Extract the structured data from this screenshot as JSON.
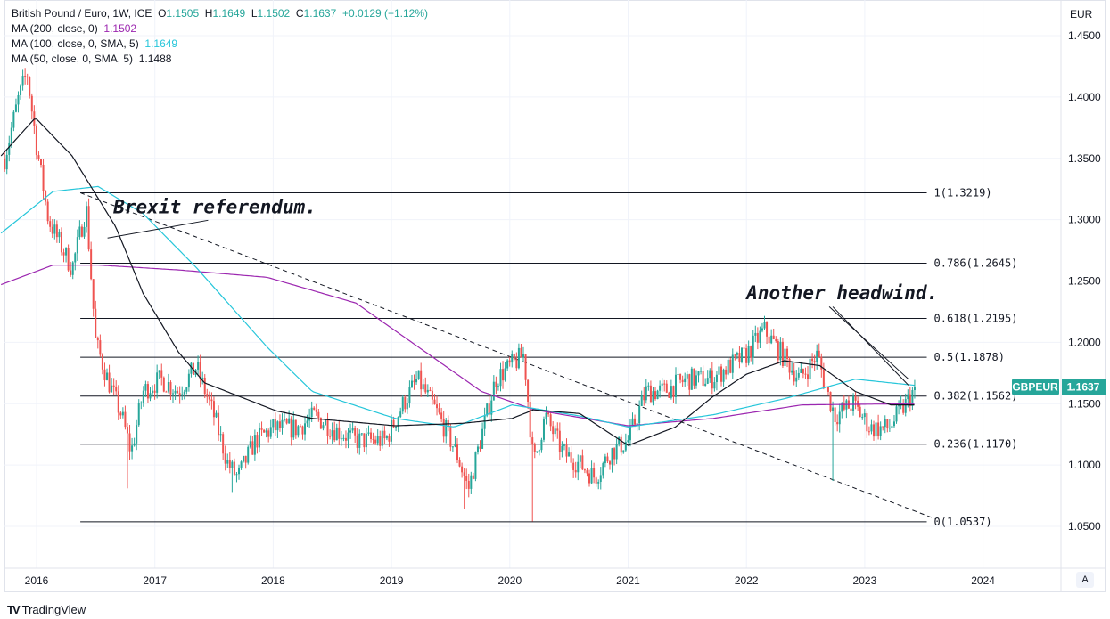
{
  "header": {
    "symbol": "British Pound / Euro, 1W, ICE",
    "open_label": "O",
    "open": "1.1505",
    "high_label": "H",
    "high": "1.1649",
    "low_label": "L",
    "low": "1.1502",
    "close_label": "C",
    "close": "1.1637",
    "change": "+0.0129 (+1.12%)"
  },
  "indicators": [
    {
      "label": "MA (200, close, 0)",
      "value": "1.1502",
      "color": "#9c27b0"
    },
    {
      "label": "MA (100, close, 0, SMA, 5)",
      "value": "1.1649",
      "color": "#26c6da"
    },
    {
      "label": "MA (50, close, 0, SMA, 5)",
      "value": "1.1488",
      "color": "#131722"
    }
  ],
  "price_tag": {
    "symbol": "GBPEUR",
    "value": "1.1637",
    "color": "#26a69a"
  },
  "footer": {
    "brand": "TradingView",
    "auto_button": "A"
  },
  "chart_data": {
    "type": "candlestick",
    "currency_label": "EUR",
    "ylim": [
      1.02,
      1.47
    ],
    "xlim": [
      2015.7,
      2024.65
    ],
    "y_ticks": [
      "1.0500",
      "1.1000",
      "1.1500",
      "1.2000",
      "1.2500",
      "1.3000",
      "1.3500",
      "1.4000",
      "1.4500"
    ],
    "x_ticks": [
      "2016",
      "2017",
      "2018",
      "2019",
      "2020",
      "2021",
      "2022",
      "2023",
      "2024"
    ],
    "up_color": "#26a69a",
    "down_color": "#ef5350",
    "close_path": [
      [
        2015.73,
        1.35
      ],
      [
        2015.85,
        1.4
      ],
      [
        2015.92,
        1.42
      ],
      [
        2016.0,
        1.36
      ],
      [
        2016.1,
        1.3
      ],
      [
        2016.2,
        1.28
      ],
      [
        2016.3,
        1.26
      ],
      [
        2016.42,
        1.31
      ],
      [
        2016.5,
        1.2
      ],
      [
        2016.6,
        1.17
      ],
      [
        2016.72,
        1.14
      ],
      [
        2016.8,
        1.11
      ],
      [
        2016.9,
        1.16
      ],
      [
        2017.05,
        1.17
      ],
      [
        2017.2,
        1.16
      ],
      [
        2017.35,
        1.18
      ],
      [
        2017.5,
        1.14
      ],
      [
        2017.62,
        1.1
      ],
      [
        2017.7,
        1.09
      ],
      [
        2017.85,
        1.12
      ],
      [
        2018.0,
        1.13
      ],
      [
        2018.2,
        1.13
      ],
      [
        2018.35,
        1.14
      ],
      [
        2018.5,
        1.13
      ],
      [
        2018.7,
        1.12
      ],
      [
        2018.95,
        1.12
      ],
      [
        2019.1,
        1.15
      ],
      [
        2019.22,
        1.17
      ],
      [
        2019.4,
        1.14
      ],
      [
        2019.55,
        1.11
      ],
      [
        2019.65,
        1.08
      ],
      [
        2019.75,
        1.12
      ],
      [
        2019.88,
        1.17
      ],
      [
        2020.0,
        1.18
      ],
      [
        2020.12,
        1.19
      ],
      [
        2020.2,
        1.1
      ],
      [
        2020.3,
        1.14
      ],
      [
        2020.45,
        1.11
      ],
      [
        2020.6,
        1.1
      ],
      [
        2020.72,
        1.09
      ],
      [
        2020.85,
        1.11
      ],
      [
        2021.0,
        1.12
      ],
      [
        2021.15,
        1.16
      ],
      [
        2021.3,
        1.16
      ],
      [
        2021.5,
        1.17
      ],
      [
        2021.7,
        1.17
      ],
      [
        2021.85,
        1.18
      ],
      [
        2022.0,
        1.19
      ],
      [
        2022.15,
        1.21
      ],
      [
        2022.3,
        1.19
      ],
      [
        2022.45,
        1.17
      ],
      [
        2022.6,
        1.19
      ],
      [
        2022.68,
        1.16
      ],
      [
        2022.75,
        1.14
      ],
      [
        2022.9,
        1.15
      ],
      [
        2023.05,
        1.13
      ],
      [
        2023.2,
        1.13
      ],
      [
        2023.35,
        1.15
      ],
      [
        2023.43,
        1.1637
      ]
    ],
    "wick_lows": [
      [
        2016.77,
        1.081
      ],
      [
        2017.65,
        1.078
      ],
      [
        2019.62,
        1.064
      ],
      [
        2020.2,
        1.054
      ],
      [
        2022.73,
        1.087
      ]
    ],
    "ma200": [
      [
        2015.7,
        1.247
      ],
      [
        2016.14,
        1.263
      ],
      [
        2016.52,
        1.263
      ],
      [
        2017.2,
        1.259
      ],
      [
        2017.95,
        1.253
      ],
      [
        2018.7,
        1.232
      ],
      [
        2019.23,
        1.196
      ],
      [
        2019.76,
        1.16
      ],
      [
        2020.21,
        1.145
      ],
      [
        2021.0,
        1.132
      ],
      [
        2021.72,
        1.138
      ],
      [
        2022.47,
        1.149
      ],
      [
        2023.42,
        1.15
      ]
    ],
    "ma100": [
      [
        2015.7,
        1.289
      ],
      [
        2016.14,
        1.323
      ],
      [
        2016.52,
        1.327
      ],
      [
        2016.9,
        1.305
      ],
      [
        2017.35,
        1.261
      ],
      [
        2017.95,
        1.196
      ],
      [
        2018.33,
        1.16
      ],
      [
        2019.03,
        1.138
      ],
      [
        2019.53,
        1.131
      ],
      [
        2020.02,
        1.149
      ],
      [
        2020.59,
        1.14
      ],
      [
        2021.0,
        1.131
      ],
      [
        2021.72,
        1.141
      ],
      [
        2022.32,
        1.154
      ],
      [
        2022.92,
        1.17
      ],
      [
        2023.42,
        1.165
      ]
    ],
    "ma50": [
      [
        2015.7,
        1.352
      ],
      [
        2015.99,
        1.383
      ],
      [
        2016.3,
        1.352
      ],
      [
        2016.67,
        1.294
      ],
      [
        2016.9,
        1.24
      ],
      [
        2017.2,
        1.192
      ],
      [
        2017.42,
        1.167
      ],
      [
        2018.03,
        1.144
      ],
      [
        2018.33,
        1.138
      ],
      [
        2019.03,
        1.132
      ],
      [
        2019.6,
        1.134
      ],
      [
        2020.02,
        1.138
      ],
      [
        2020.2,
        1.145
      ],
      [
        2020.59,
        1.142
      ],
      [
        2021.0,
        1.116
      ],
      [
        2021.4,
        1.131
      ],
      [
        2021.72,
        1.156
      ],
      [
        2022.0,
        1.174
      ],
      [
        2022.32,
        1.185
      ],
      [
        2022.62,
        1.181
      ],
      [
        2022.92,
        1.16
      ],
      [
        2023.22,
        1.149
      ],
      [
        2023.42,
        1.149
      ]
    ],
    "fibonacci": [
      {
        "label": "1(1.3219)",
        "price": 1.3219
      },
      {
        "label": "0.786(1.2645)",
        "price": 1.2645
      },
      {
        "label": "0.618(1.2195)",
        "price": 1.2195
      },
      {
        "label": "0.5(1.1878)",
        "price": 1.1878
      },
      {
        "label": "0.382(1.1562)",
        "price": 1.1562
      },
      {
        "label": "0.236(1.1170)",
        "price": 1.117
      },
      {
        "label": "0(1.0537)",
        "price": 1.0537
      }
    ],
    "fib_range": [
      2016.37,
      2023.6
    ],
    "trendline": [
      [
        2016.37,
        1.3219
      ],
      [
        2023.6,
        1.056
      ]
    ],
    "annotations": [
      {
        "text": "Brexit referendum.",
        "at": [
          2016.65,
          1.305
        ],
        "pointer": [
          [
            2016.6,
            1.285
          ],
          [
            2017.45,
            1.2995
          ]
        ]
      },
      {
        "text": "Another headwind.",
        "at": [
          2022.0,
          1.235
        ],
        "pointer": [
          [
            2022.7,
            1.229
          ],
          [
            2023.37,
            1.17
          ]
        ],
        "pointer2": [
          [
            2022.73,
            1.229
          ],
          [
            2023.37,
            1.165
          ]
        ]
      }
    ]
  }
}
